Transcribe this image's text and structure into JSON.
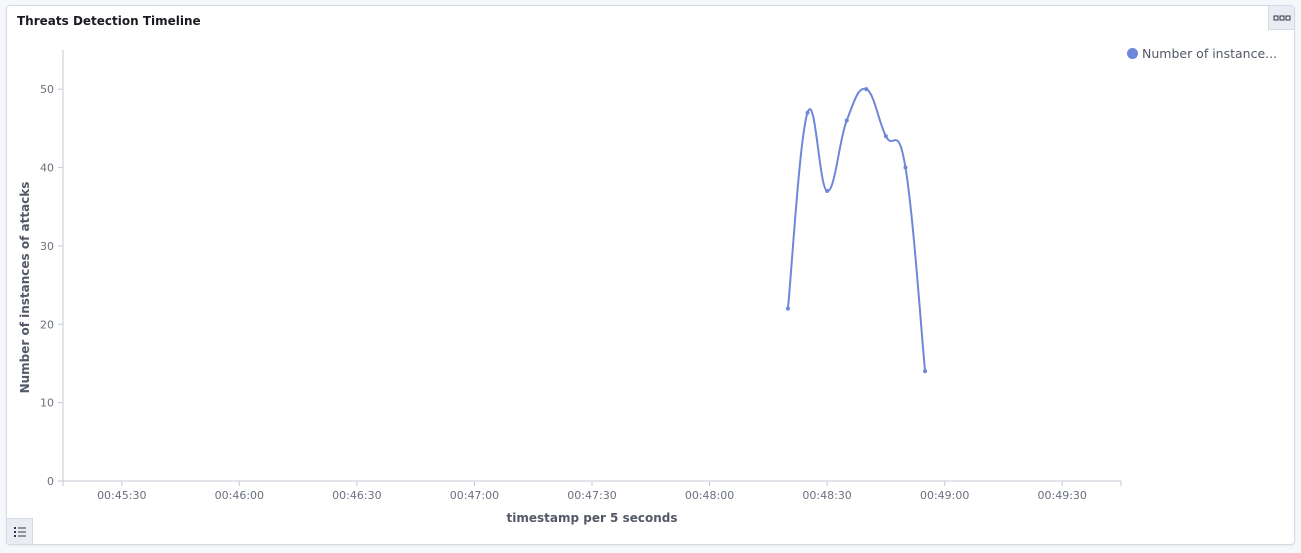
{
  "panel": {
    "title": "Threats Detection Timeline",
    "menu_icon": "options-dots-icon",
    "legend_toggle_icon": "list-icon"
  },
  "legend": {
    "label": "Number of instance...",
    "color": "#6f87d8"
  },
  "chart_data": {
    "type": "line",
    "xlabel": "timestamp per 5 seconds",
    "ylabel": "Number of instances of attacks",
    "x_tick_labels": [
      "00:45:30",
      "00:46:00",
      "00:46:30",
      "00:47:00",
      "00:47:30",
      "00:48:00",
      "00:48:30",
      "00:49:00",
      "00:49:30"
    ],
    "y_tick_labels": [
      "0",
      "10",
      "20",
      "30",
      "40",
      "50"
    ],
    "ylim": [
      0,
      55
    ],
    "xlim": [
      "00:45:15",
      "00:49:45"
    ],
    "series": [
      {
        "name": "Number of instance...",
        "color": "#6f87d8",
        "points": [
          {
            "x": "00:48:20",
            "y": 22
          },
          {
            "x": "00:48:25",
            "y": 47
          },
          {
            "x": "00:48:30",
            "y": 37
          },
          {
            "x": "00:48:35",
            "y": 46
          },
          {
            "x": "00:48:40",
            "y": 50
          },
          {
            "x": "00:48:45",
            "y": 44
          },
          {
            "x": "00:48:50",
            "y": 40
          },
          {
            "x": "00:48:55",
            "y": 14
          }
        ]
      }
    ],
    "grid": false,
    "legend_position": "top-right"
  }
}
